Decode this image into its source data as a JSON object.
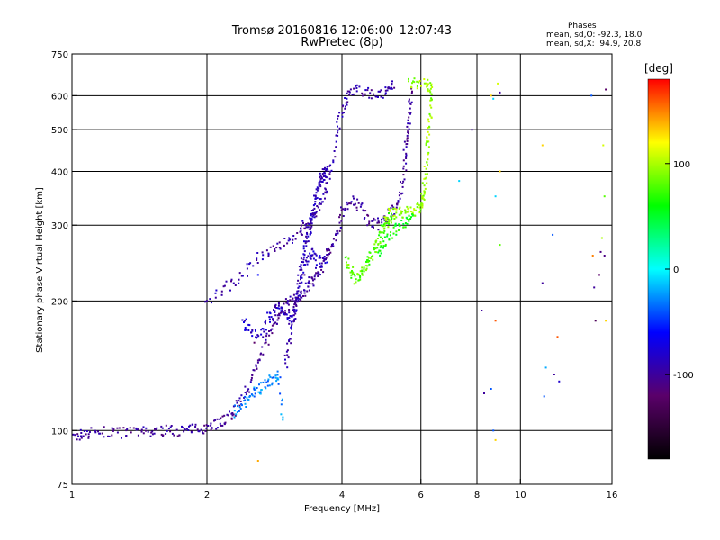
{
  "header": {
    "title": "Tromsø 20160816 12:06:00–12:07:43",
    "subtitle": "RwPretec (8p)",
    "stats_title": "Phases",
    "stats_o": "mean, sd,O: -92.3, 18.0",
    "stats_x": "mean, sd,X:  94.9, 20.8"
  },
  "chart_data": {
    "type": "scatter",
    "xlabel": "Frequency [MHz]",
    "ylabel": "Stationary phase Virtual Height [km]",
    "xscale": "log",
    "yscale": "log",
    "xlim": [
      1,
      16
    ],
    "ylim": [
      75,
      750
    ],
    "xticks": [
      1,
      2,
      4,
      6,
      8,
      10,
      16
    ],
    "yticks": [
      75,
      100,
      200,
      300,
      400,
      500,
      600,
      750
    ],
    "xgrid": [
      2,
      4,
      6,
      8,
      10
    ],
    "ygrid": [
      100,
      200,
      300,
      400,
      500,
      600
    ],
    "colorbar": {
      "label": "[deg]",
      "range": [
        -180,
        180
      ],
      "ticks": [
        -100,
        0,
        100
      ],
      "colors": [
        "#000000",
        "#5a006a",
        "#0000ff",
        "#00ffff",
        "#00ff00",
        "#ffff00",
        "#ff0000"
      ]
    },
    "traces": [
      {
        "phase": -100,
        "points": [
          [
            1.0,
            96
          ],
          [
            1.05,
            98
          ],
          [
            1.1,
            99
          ],
          [
            1.2,
            99
          ],
          [
            1.3,
            99
          ],
          [
            1.4,
            99
          ],
          [
            1.5,
            99
          ],
          [
            1.6,
            100
          ],
          [
            1.7,
            100
          ],
          [
            1.8,
            100
          ],
          [
            1.9,
            101
          ],
          [
            2.0,
            102
          ],
          [
            2.1,
            104
          ],
          [
            2.2,
            106
          ],
          [
            2.3,
            110
          ],
          [
            2.4,
            118
          ],
          [
            2.5,
            130
          ],
          [
            2.6,
            145
          ],
          [
            2.7,
            160
          ],
          [
            2.8,
            175
          ],
          [
            2.9,
            185
          ],
          [
            3.0,
            195
          ],
          [
            3.1,
            200
          ],
          [
            3.2,
            205
          ],
          [
            3.3,
            210
          ],
          [
            3.4,
            220
          ],
          [
            3.5,
            230
          ],
          [
            3.6,
            240
          ],
          [
            3.7,
            255
          ],
          [
            3.8,
            270
          ],
          [
            3.9,
            290
          ],
          [
            4.0,
            320
          ],
          [
            4.2,
            345
          ],
          [
            4.4,
            330
          ],
          [
            4.6,
            305
          ],
          [
            4.8,
            300
          ],
          [
            5.0,
            310
          ],
          [
            5.2,
            325
          ],
          [
            5.4,
            350
          ],
          [
            5.5,
            400
          ],
          [
            5.55,
            450
          ],
          [
            5.6,
            500
          ],
          [
            5.65,
            560
          ],
          [
            5.7,
            620
          ]
        ]
      },
      {
        "phase": -95,
        "points": [
          [
            2.0,
            200
          ],
          [
            2.2,
            215
          ],
          [
            2.4,
            230
          ],
          [
            2.6,
            250
          ],
          [
            2.8,
            265
          ],
          [
            3.0,
            275
          ],
          [
            3.2,
            285
          ],
          [
            3.3,
            300
          ],
          [
            3.4,
            310
          ],
          [
            3.5,
            320
          ],
          [
            3.6,
            340
          ],
          [
            3.7,
            370
          ],
          [
            3.8,
            420
          ],
          [
            3.9,
            500
          ],
          [
            4.0,
            560
          ],
          [
            4.1,
            600
          ],
          [
            4.3,
            620
          ],
          [
            4.6,
            610
          ],
          [
            4.9,
            600
          ],
          [
            5.1,
            620
          ],
          [
            5.2,
            640
          ]
        ]
      },
      {
        "phase": -90,
        "points": [
          [
            3.0,
            140
          ],
          [
            3.05,
            160
          ],
          [
            3.1,
            180
          ],
          [
            3.15,
            200
          ],
          [
            3.2,
            220
          ],
          [
            3.25,
            240
          ],
          [
            3.3,
            260
          ],
          [
            3.35,
            280
          ],
          [
            3.4,
            300
          ],
          [
            3.45,
            320
          ],
          [
            3.5,
            350
          ],
          [
            3.55,
            370
          ],
          [
            3.6,
            385
          ],
          [
            3.65,
            395
          ],
          [
            3.7,
            400
          ]
        ]
      },
      {
        "phase": -85,
        "points": [
          [
            2.4,
            180
          ],
          [
            2.5,
            170
          ],
          [
            2.6,
            165
          ],
          [
            2.7,
            175
          ],
          [
            2.8,
            190
          ],
          [
            2.9,
            195
          ],
          [
            3.0,
            185
          ],
          [
            3.1,
            180
          ],
          [
            3.2,
            200
          ],
          [
            3.3,
            240
          ],
          [
            3.4,
            260
          ],
          [
            3.5,
            250
          ],
          [
            3.6,
            245
          ],
          [
            3.7,
            250
          ]
        ]
      },
      {
        "phase": -30,
        "points": [
          [
            2.3,
            110
          ],
          [
            2.4,
            115
          ],
          [
            2.5,
            120
          ],
          [
            2.6,
            125
          ],
          [
            2.7,
            128
          ],
          [
            2.8,
            132
          ],
          [
            2.9,
            135
          ],
          [
            2.95,
            100
          ]
        ]
      },
      {
        "phase": 80,
        "points": [
          [
            4.1,
            250
          ],
          [
            4.2,
            235
          ],
          [
            4.3,
            225
          ],
          [
            4.4,
            230
          ],
          [
            4.5,
            240
          ],
          [
            4.6,
            250
          ],
          [
            4.7,
            260
          ],
          [
            4.8,
            275
          ],
          [
            4.9,
            290
          ],
          [
            5.0,
            300
          ],
          [
            5.1,
            310
          ],
          [
            5.2,
            315
          ]
        ]
      },
      {
        "phase": 95,
        "points": [
          [
            5.0,
            320
          ],
          [
            5.2,
            320
          ],
          [
            5.4,
            320
          ],
          [
            5.6,
            322
          ],
          [
            5.8,
            325
          ],
          [
            6.0,
            330
          ],
          [
            6.05,
            340
          ],
          [
            6.1,
            360
          ],
          [
            6.15,
            400
          ],
          [
            6.2,
            450
          ],
          [
            6.25,
            500
          ],
          [
            6.3,
            560
          ],
          [
            6.35,
            620
          ],
          [
            6.2,
            640
          ],
          [
            5.9,
            640
          ],
          [
            5.6,
            645
          ]
        ]
      },
      {
        "phase": 60,
        "points": [
          [
            4.8,
            260
          ],
          [
            5.0,
            270
          ],
          [
            5.2,
            290
          ],
          [
            5.4,
            300
          ],
          [
            5.6,
            305
          ],
          [
            5.8,
            310
          ]
        ]
      }
    ],
    "scattered_points": [
      [
        2.6,
        230,
        -60
      ],
      [
        2.55,
        160,
        -120
      ],
      [
        3.3,
        295,
        -110
      ],
      [
        3.3,
        230,
        -110
      ],
      [
        4.2,
        340,
        -80
      ],
      [
        8.6,
        600,
        130
      ],
      [
        8.9,
        640,
        110
      ],
      [
        9.0,
        610,
        -100
      ],
      [
        8.7,
        590,
        -10
      ],
      [
        7.8,
        500,
        -100
      ],
      [
        7.3,
        380,
        -10
      ],
      [
        8.8,
        350,
        -10
      ],
      [
        9.0,
        400,
        130
      ],
      [
        9.0,
        270,
        80
      ],
      [
        8.2,
        190,
        -100
      ],
      [
        8.8,
        180,
        160
      ],
      [
        8.6,
        125,
        -40
      ],
      [
        8.3,
        122,
        -100
      ],
      [
        8.7,
        100,
        -40
      ],
      [
        8.8,
        95,
        130
      ],
      [
        11.2,
        460,
        130
      ],
      [
        11.8,
        285,
        -40
      ],
      [
        11.2,
        220,
        -100
      ],
      [
        12.1,
        165,
        160
      ],
      [
        11.9,
        135,
        -100
      ],
      [
        12.2,
        130,
        -80
      ],
      [
        11.3,
        120,
        -40
      ],
      [
        11.4,
        140,
        -20
      ],
      [
        14.4,
        600,
        -40
      ],
      [
        15.5,
        620,
        -120
      ],
      [
        15.3,
        460,
        110
      ],
      [
        15.4,
        350,
        80
      ],
      [
        15.2,
        280,
        100
      ],
      [
        15.1,
        260,
        -110
      ],
      [
        14.5,
        255,
        150
      ],
      [
        14.6,
        215,
        -100
      ],
      [
        14.7,
        180,
        -130
      ],
      [
        15.4,
        255,
        -110
      ],
      [
        15.0,
        230,
        -120
      ],
      [
        15.5,
        180,
        130
      ],
      [
        2.6,
        85,
        140
      ]
    ]
  }
}
